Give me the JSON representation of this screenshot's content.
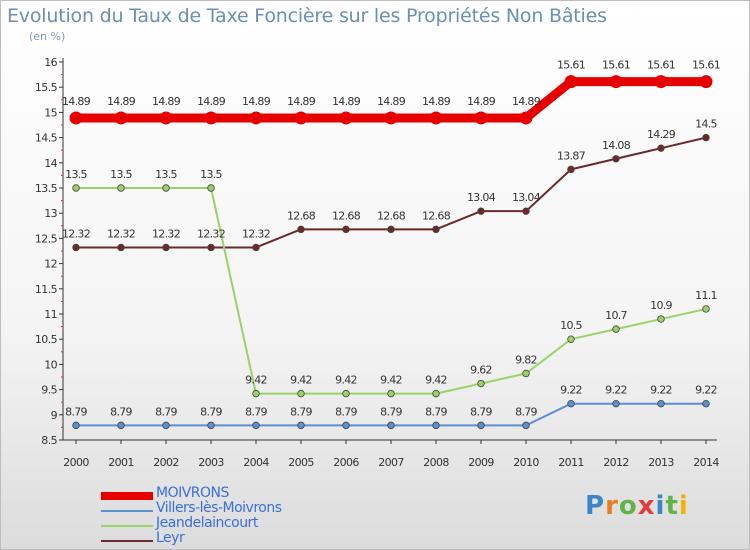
{
  "title": "Evolution du Taux de Taxe Foncière sur les Propriétés Non Bâties",
  "subtitle": "(en %)",
  "logo": {
    "letters": [
      "P",
      "r",
      "o",
      "x",
      "i",
      "t",
      "i"
    ],
    "colors": [
      "#3a86c8",
      "#e87e22",
      "#62b44a",
      "#e23c3c",
      "#3a86c8",
      "#62b44a",
      "#f2b400"
    ]
  },
  "chart_data": {
    "type": "line",
    "x": [
      "2000",
      "2001",
      "2002",
      "2003",
      "2004",
      "2005",
      "2006",
      "2007",
      "2008",
      "2009",
      "2010",
      "2011",
      "2012",
      "2013",
      "2014"
    ],
    "ylim": [
      8.5,
      16
    ],
    "yticks": [
      "8.5",
      "9",
      "9.5",
      "10",
      "10.5",
      "11",
      "11.5",
      "12",
      "12.5",
      "13",
      "13.5",
      "14",
      "14.5",
      "15",
      "15.5",
      "16"
    ],
    "grid": false,
    "legend_position": "bottom-left",
    "series": [
      {
        "name": "MOIVRONS",
        "color": "#e60000",
        "values": [
          14.89,
          14.89,
          14.89,
          14.89,
          14.89,
          14.89,
          14.89,
          14.89,
          14.89,
          14.89,
          14.89,
          15.61,
          15.61,
          15.61,
          15.61
        ],
        "labels": [
          "14.89",
          "14.89",
          "14.89",
          "14.89",
          "14.89",
          "14.89",
          "14.89",
          "14.89",
          "14.89",
          "14.89",
          "14.89",
          "15.61",
          "15.61",
          "15.61",
          "15.61"
        ]
      },
      {
        "name": "Villers-lès-Moivrons",
        "color": "#5b8fd0",
        "values": [
          8.79,
          8.79,
          8.79,
          8.79,
          8.79,
          8.79,
          8.79,
          8.79,
          8.79,
          8.79,
          8.79,
          9.22,
          9.22,
          9.22,
          9.22
        ],
        "labels": [
          "8.79",
          "8.79",
          "8.79",
          "8.79",
          "8.79",
          "8.79",
          "8.79",
          "8.79",
          "8.79",
          "8.79",
          "8.79",
          "9.22",
          "9.22",
          "9.22",
          "9.22"
        ]
      },
      {
        "name": "Jeandelaincourt",
        "color": "#9ad26a",
        "values": [
          13.5,
          13.5,
          13.5,
          13.5,
          9.42,
          9.42,
          9.42,
          9.42,
          9.42,
          9.62,
          9.82,
          10.5,
          10.7,
          10.9,
          11.1
        ],
        "labels": [
          "13.5",
          "13.5",
          "13.5",
          "13.5",
          "9.42",
          "9.42",
          "9.42",
          "9.42",
          "9.42",
          "9.62",
          "9.82",
          "10.5",
          "10.7",
          "10.9",
          "11.1"
        ]
      },
      {
        "name": "Leyr",
        "color": "#6b2a2a",
        "values": [
          12.32,
          12.32,
          12.32,
          12.32,
          12.32,
          12.68,
          12.68,
          12.68,
          12.68,
          13.04,
          13.04,
          13.87,
          14.08,
          14.29,
          14.5
        ],
        "labels": [
          "12.32",
          "12.32",
          "12.32",
          "12.32",
          "12.32",
          "12.68",
          "12.68",
          "12.68",
          "12.68",
          "13.04",
          "13.04",
          "13.87",
          "14.08",
          "14.29",
          "14.5"
        ]
      }
    ]
  }
}
